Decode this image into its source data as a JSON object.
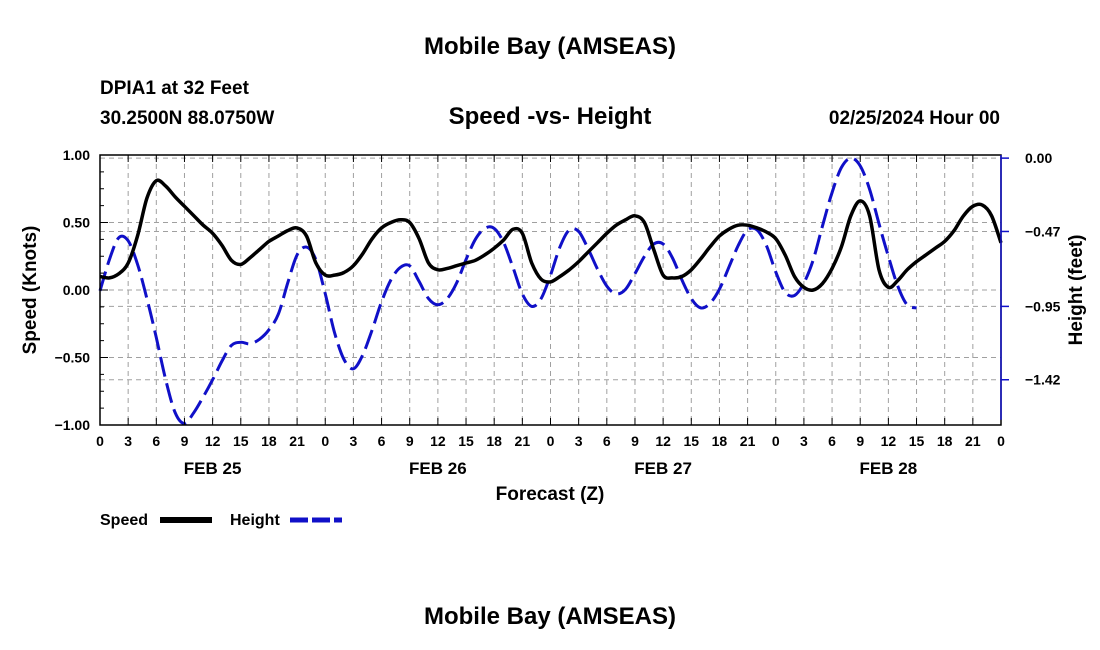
{
  "page": {
    "title": "Mobile Bay (AMSEAS)",
    "footer_title": "Mobile Bay (AMSEAS)"
  },
  "chart_data": {
    "type": "line",
    "station": "DPIA1 at 32 Feet",
    "location": "30.2500N  88.0750W",
    "title": "Speed -vs- Height",
    "datetime": "02/25/2024 Hour 00",
    "xlabel": "Forecast (Z)",
    "ylabel_left": "Speed (Knots)",
    "ylabel_right": "Height (feet)",
    "xlim": [
      0,
      96
    ],
    "ylim_left": [
      -1.0,
      1.0
    ],
    "ylim_right": [
      -1.71,
      0.02
    ],
    "left_ticks": [
      {
        "value": 1.0,
        "label": "1.00"
      },
      {
        "value": 0.5,
        "label": "0.50"
      },
      {
        "value": 0.0,
        "label": "0.00"
      },
      {
        "value": -0.5,
        "label": "−0.50"
      },
      {
        "value": -1.0,
        "label": "−1.00"
      }
    ],
    "right_ticks": [
      {
        "value": 0.0,
        "label": "0.00"
      },
      {
        "value": -0.47,
        "label": "−0.47"
      },
      {
        "value": -0.95,
        "label": "−0.95"
      },
      {
        "value": -1.42,
        "label": "−1.42"
      }
    ],
    "x_tick_labels": [
      "0",
      "3",
      "6",
      "9",
      "12",
      "15",
      "18",
      "21",
      "0",
      "3",
      "6",
      "9",
      "12",
      "15",
      "18",
      "21",
      "0",
      "3",
      "6",
      "9",
      "12",
      "15",
      "18",
      "21",
      "0",
      "3",
      "6",
      "9",
      "12",
      "15",
      "18",
      "21",
      "0"
    ],
    "day_labels": [
      {
        "x": 12,
        "label": "FEB 25"
      },
      {
        "x": 36,
        "label": "FEB 26"
      },
      {
        "x": 60,
        "label": "FEB 27"
      },
      {
        "x": 84,
        "label": "FEB 28"
      }
    ],
    "grid": true,
    "legend_position": "bottom-left",
    "series": [
      {
        "name": "Speed",
        "axis": "left",
        "color": "#000000",
        "dash": "solid",
        "points": [
          [
            0,
            0.1
          ],
          [
            1,
            0.09
          ],
          [
            2,
            0.12
          ],
          [
            3,
            0.2
          ],
          [
            4,
            0.4
          ],
          [
            5,
            0.68
          ],
          [
            6,
            0.81
          ],
          [
            7,
            0.77
          ],
          [
            8,
            0.69
          ],
          [
            9,
            0.62
          ],
          [
            10,
            0.55
          ],
          [
            11,
            0.48
          ],
          [
            12,
            0.42
          ],
          [
            13,
            0.33
          ],
          [
            14,
            0.22
          ],
          [
            15,
            0.19
          ],
          [
            16,
            0.24
          ],
          [
            17,
            0.3
          ],
          [
            18,
            0.36
          ],
          [
            19,
            0.4
          ],
          [
            20,
            0.44
          ],
          [
            21,
            0.46
          ],
          [
            22,
            0.4
          ],
          [
            23,
            0.2
          ],
          [
            24,
            0.11
          ],
          [
            25,
            0.11
          ],
          [
            26,
            0.13
          ],
          [
            27,
            0.18
          ],
          [
            28,
            0.27
          ],
          [
            29,
            0.38
          ],
          [
            30,
            0.46
          ],
          [
            31,
            0.5
          ],
          [
            32,
            0.52
          ],
          [
            33,
            0.5
          ],
          [
            34,
            0.38
          ],
          [
            35,
            0.2
          ],
          [
            36,
            0.15
          ],
          [
            37,
            0.16
          ],
          [
            38,
            0.18
          ],
          [
            39,
            0.2
          ],
          [
            40,
            0.22
          ],
          [
            41,
            0.26
          ],
          [
            42,
            0.31
          ],
          [
            43,
            0.37
          ],
          [
            44,
            0.45
          ],
          [
            45,
            0.42
          ],
          [
            46,
            0.2
          ],
          [
            47,
            0.08
          ],
          [
            48,
            0.06
          ],
          [
            49,
            0.1
          ],
          [
            50,
            0.15
          ],
          [
            51,
            0.21
          ],
          [
            52,
            0.28
          ],
          [
            53,
            0.35
          ],
          [
            54,
            0.42
          ],
          [
            55,
            0.48
          ],
          [
            56,
            0.52
          ],
          [
            57,
            0.55
          ],
          [
            58,
            0.5
          ],
          [
            59,
            0.3
          ],
          [
            60,
            0.11
          ],
          [
            61,
            0.09
          ],
          [
            62,
            0.1
          ],
          [
            63,
            0.15
          ],
          [
            64,
            0.23
          ],
          [
            65,
            0.32
          ],
          [
            66,
            0.4
          ],
          [
            67,
            0.45
          ],
          [
            68,
            0.48
          ],
          [
            69,
            0.48
          ],
          [
            70,
            0.46
          ],
          [
            71,
            0.43
          ],
          [
            72,
            0.38
          ],
          [
            73,
            0.26
          ],
          [
            74,
            0.1
          ],
          [
            75,
            0.02
          ],
          [
            76,
            0.0
          ],
          [
            77,
            0.05
          ],
          [
            78,
            0.16
          ],
          [
            79,
            0.32
          ],
          [
            80,
            0.55
          ],
          [
            81,
            0.66
          ],
          [
            82,
            0.55
          ],
          [
            83,
            0.15
          ],
          [
            84,
            0.02
          ],
          [
            85,
            0.07
          ],
          [
            86,
            0.15
          ],
          [
            87,
            0.21
          ],
          [
            88,
            0.26
          ],
          [
            89,
            0.31
          ],
          [
            90,
            0.36
          ],
          [
            91,
            0.44
          ],
          [
            92,
            0.55
          ],
          [
            93,
            0.62
          ],
          [
            94,
            0.63
          ],
          [
            95,
            0.55
          ],
          [
            96,
            0.35
          ]
        ]
      },
      {
        "name": "Height",
        "axis": "right",
        "color": "#1010c8",
        "dash": "dashed",
        "points": [
          [
            0,
            -0.85
          ],
          [
            1,
            -0.65
          ],
          [
            2,
            -0.51
          ],
          [
            3,
            -0.53
          ],
          [
            4,
            -0.68
          ],
          [
            5,
            -0.9
          ],
          [
            6,
            -1.15
          ],
          [
            7,
            -1.42
          ],
          [
            8,
            -1.63
          ],
          [
            9,
            -1.7
          ],
          [
            10,
            -1.63
          ],
          [
            11,
            -1.53
          ],
          [
            12,
            -1.42
          ],
          [
            13,
            -1.3
          ],
          [
            14,
            -1.2
          ],
          [
            15,
            -1.18
          ],
          [
            16,
            -1.19
          ],
          [
            17,
            -1.16
          ],
          [
            18,
            -1.1
          ],
          [
            19,
            -1.0
          ],
          [
            20,
            -0.8
          ],
          [
            21,
            -0.62
          ],
          [
            22,
            -0.57
          ],
          [
            23,
            -0.65
          ],
          [
            24,
            -0.87
          ],
          [
            25,
            -1.12
          ],
          [
            26,
            -1.29
          ],
          [
            27,
            -1.35
          ],
          [
            28,
            -1.26
          ],
          [
            29,
            -1.1
          ],
          [
            30,
            -0.92
          ],
          [
            31,
            -0.78
          ],
          [
            32,
            -0.7
          ],
          [
            33,
            -0.69
          ],
          [
            34,
            -0.79
          ],
          [
            35,
            -0.9
          ],
          [
            36,
            -0.94
          ],
          [
            37,
            -0.9
          ],
          [
            38,
            -0.8
          ],
          [
            39,
            -0.65
          ],
          [
            40,
            -0.52
          ],
          [
            41,
            -0.45
          ],
          [
            42,
            -0.45
          ],
          [
            43,
            -0.54
          ],
          [
            44,
            -0.7
          ],
          [
            45,
            -0.87
          ],
          [
            46,
            -0.95
          ],
          [
            47,
            -0.9
          ],
          [
            48,
            -0.75
          ],
          [
            49,
            -0.57
          ],
          [
            50,
            -0.46
          ],
          [
            51,
            -0.47
          ],
          [
            52,
            -0.58
          ],
          [
            53,
            -0.71
          ],
          [
            54,
            -0.82
          ],
          [
            55,
            -0.87
          ],
          [
            56,
            -0.84
          ],
          [
            57,
            -0.74
          ],
          [
            58,
            -0.63
          ],
          [
            59,
            -0.55
          ],
          [
            60,
            -0.55
          ],
          [
            61,
            -0.64
          ],
          [
            62,
            -0.78
          ],
          [
            63,
            -0.9
          ],
          [
            64,
            -0.96
          ],
          [
            65,
            -0.93
          ],
          [
            66,
            -0.84
          ],
          [
            67,
            -0.7
          ],
          [
            68,
            -0.56
          ],
          [
            69,
            -0.46
          ],
          [
            70,
            -0.46
          ],
          [
            71,
            -0.56
          ],
          [
            72,
            -0.73
          ],
          [
            73,
            -0.86
          ],
          [
            74,
            -0.88
          ],
          [
            75,
            -0.8
          ],
          [
            76,
            -0.65
          ],
          [
            77,
            -0.43
          ],
          [
            78,
            -0.22
          ],
          [
            79,
            -0.06
          ],
          [
            80,
            0.0
          ],
          [
            81,
            -0.05
          ],
          [
            82,
            -0.2
          ],
          [
            83,
            -0.42
          ],
          [
            84,
            -0.63
          ],
          [
            85,
            -0.82
          ],
          [
            86,
            -0.94
          ],
          [
            87,
            -0.96
          ]
        ]
      }
    ]
  }
}
